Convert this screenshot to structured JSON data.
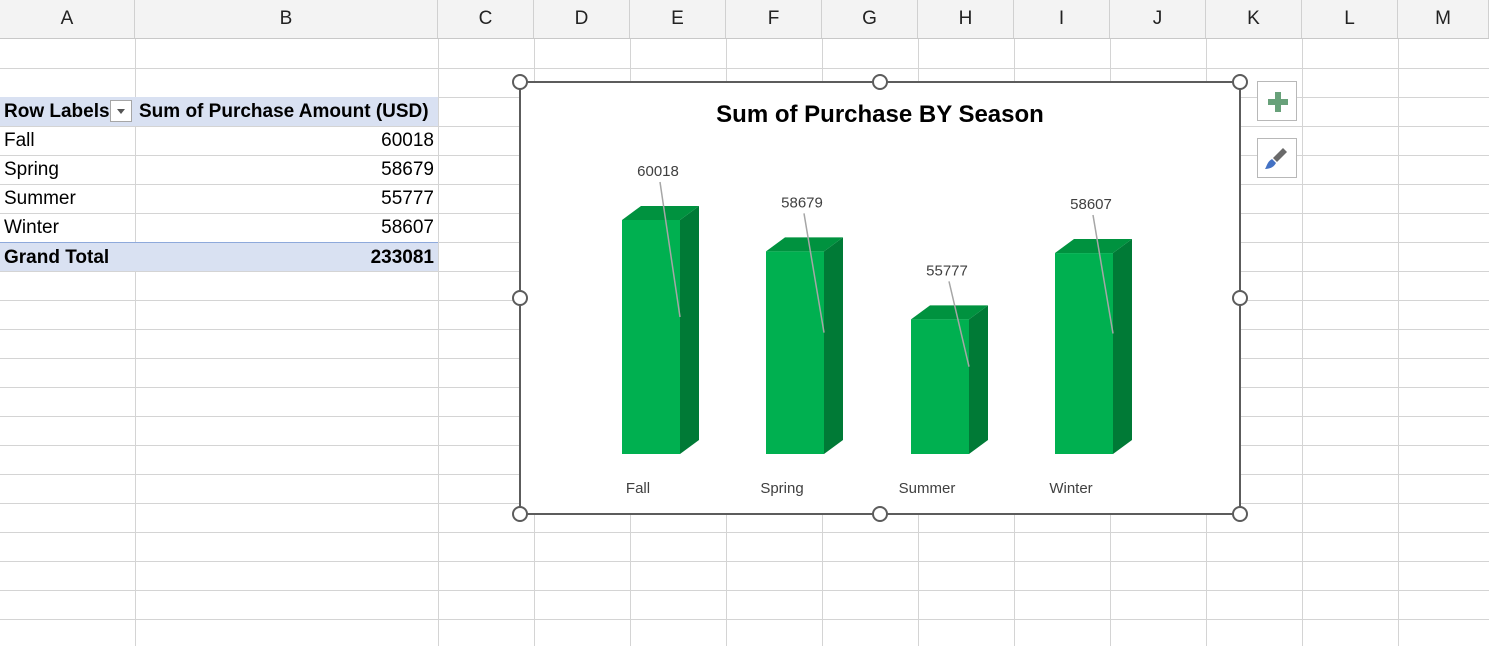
{
  "columns": [
    "A",
    "B",
    "C",
    "D",
    "E",
    "F",
    "G",
    "H",
    "I",
    "J",
    "K",
    "L",
    "M"
  ],
  "pivot": {
    "header_row_label": "Row Labels",
    "header_value_label": "Sum of Purchase Amount (USD)",
    "rows": [
      {
        "label": "Fall",
        "value": "60018"
      },
      {
        "label": "Spring",
        "value": "58679"
      },
      {
        "label": "Summer",
        "value": "55777"
      },
      {
        "label": "Winter",
        "value": "58607"
      }
    ],
    "total_label": "Grand Total",
    "total_value": "233081"
  },
  "chart_data": {
    "type": "bar",
    "title": "Sum of Purchase BY Season",
    "categories": [
      "Fall",
      "Spring",
      "Summer",
      "Winter"
    ],
    "values": [
      60018,
      58679,
      55777,
      58607
    ],
    "data_labels": [
      "60018",
      "58679",
      "55777",
      "58607"
    ],
    "bar_color": "#00b050",
    "bar_side_color": "#007a36",
    "bar_top_color": "#00923f",
    "legend": "none",
    "grid": false,
    "style": "3d-column"
  },
  "side_buttons": {
    "add_element_icon": "plus-icon",
    "style_icon": "paintbrush-icon"
  }
}
